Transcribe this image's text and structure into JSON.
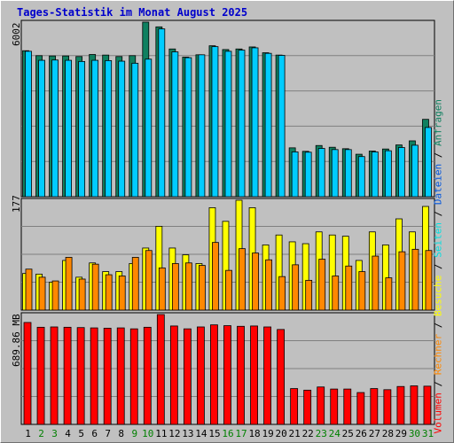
{
  "title": "Tages-Statistik im Monat August 2025",
  "colors": {
    "anfragen": "#0f8060",
    "dateien": "#00ccff",
    "seiten": "#00e0e0",
    "besuche": "#ffff00",
    "rechner": "#ff8800",
    "volumen": "#ff0000",
    "grid": "#808080",
    "plot_bg": "#c0c0c0",
    "weekend_label": "#008000"
  },
  "legend": {
    "volumen": "Volumen",
    "rechner": "Rechner",
    "besuche": "Besuche",
    "seiten": "Seiten",
    "dateien": "Dateien",
    "anfragen": "Anfragen",
    "sep": " / "
  },
  "chart_data": [
    {
      "type": "bar",
      "panel": "top",
      "ymax_label": "6002",
      "ylim": [
        0,
        6002
      ],
      "categories": [
        "1",
        "2",
        "3",
        "4",
        "5",
        "6",
        "7",
        "8",
        "9",
        "10",
        "11",
        "12",
        "13",
        "14",
        "15",
        "16",
        "17",
        "18",
        "19",
        "20",
        "21",
        "22",
        "23",
        "24",
        "25",
        "26",
        "27",
        "28",
        "29",
        "30",
        "31"
      ],
      "weekend_days": [
        "2",
        "3",
        "9",
        "10",
        "16",
        "17",
        "23",
        "24",
        "30",
        "31"
      ],
      "series": [
        {
          "name": "Anfragen",
          "values": [
            5020,
            4850,
            4840,
            4840,
            4820,
            4890,
            4870,
            4820,
            4850,
            6002,
            5840,
            5080,
            4800,
            4880,
            5190,
            5060,
            5080,
            5150,
            4950,
            4870,
            1680,
            1560,
            1760,
            1700,
            1650,
            1460,
            1570,
            1640,
            1780,
            1920,
            2660
          ]
        },
        {
          "name": "Dateien",
          "values": [
            5000,
            4690,
            4700,
            4690,
            4650,
            4690,
            4680,
            4660,
            4590,
            4730,
            5770,
            4980,
            4780,
            4880,
            5160,
            5000,
            5040,
            5120,
            4930,
            4860,
            1540,
            1530,
            1660,
            1620,
            1620,
            1380,
            1540,
            1580,
            1690,
            1770,
            2380
          ]
        }
      ]
    },
    {
      "type": "bar",
      "panel": "middle",
      "ymax_label": "177",
      "ylim": [
        0,
        177
      ],
      "categories": [
        "1",
        "2",
        "3",
        "4",
        "5",
        "6",
        "7",
        "8",
        "9",
        "10",
        "11",
        "12",
        "13",
        "14",
        "15",
        "16",
        "17",
        "18",
        "19",
        "20",
        "21",
        "22",
        "23",
        "24",
        "25",
        "26",
        "27",
        "28",
        "29",
        "30",
        "31"
      ],
      "series": [
        {
          "name": "Seiten",
          "values": [
            59,
            58,
            45,
            80,
            53,
            76,
            62,
            62,
            75,
            100,
            135,
            100,
            89,
            75,
            165,
            143,
            177,
            165,
            105,
            121,
            110,
            107,
            126,
            121,
            119,
            80,
            126,
            105,
            147,
            126,
            167
          ]
        },
        {
          "name": "Besuche",
          "values": [
            59,
            58,
            45,
            80,
            53,
            76,
            62,
            62,
            75,
            100,
            135,
            100,
            89,
            75,
            165,
            143,
            177,
            165,
            105,
            121,
            110,
            107,
            126,
            121,
            119,
            80,
            126,
            105,
            147,
            126,
            167
          ]
        },
        {
          "name": "Rechner",
          "values": [
            66,
            53,
            47,
            85,
            50,
            74,
            57,
            55,
            85,
            96,
            68,
            75,
            76,
            72,
            109,
            64,
            99,
            92,
            81,
            54,
            73,
            48,
            82,
            55,
            71,
            62,
            87,
            52,
            94,
            98,
            96
          ]
        }
      ]
    },
    {
      "type": "bar",
      "panel": "bottom",
      "ymax_label": "689.86 MB",
      "ylim": [
        0,
        689.86
      ],
      "unit": "MB",
      "categories": [
        "1",
        "2",
        "3",
        "4",
        "5",
        "6",
        "7",
        "8",
        "9",
        "10",
        "11",
        "12",
        "13",
        "14",
        "15",
        "16",
        "17",
        "18",
        "19",
        "20",
        "21",
        "22",
        "23",
        "24",
        "25",
        "26",
        "27",
        "28",
        "29",
        "30",
        "31"
      ],
      "series": [
        {
          "name": "Volumen",
          "values": [
            640,
            610,
            612,
            610,
            608,
            606,
            604,
            606,
            600,
            610,
            689.86,
            618,
            600,
            612,
            625,
            620,
            616,
            618,
            612,
            596,
            225,
            215,
            235,
            222,
            222,
            200,
            225,
            218,
            238,
            242,
            240
          ]
        }
      ]
    }
  ]
}
